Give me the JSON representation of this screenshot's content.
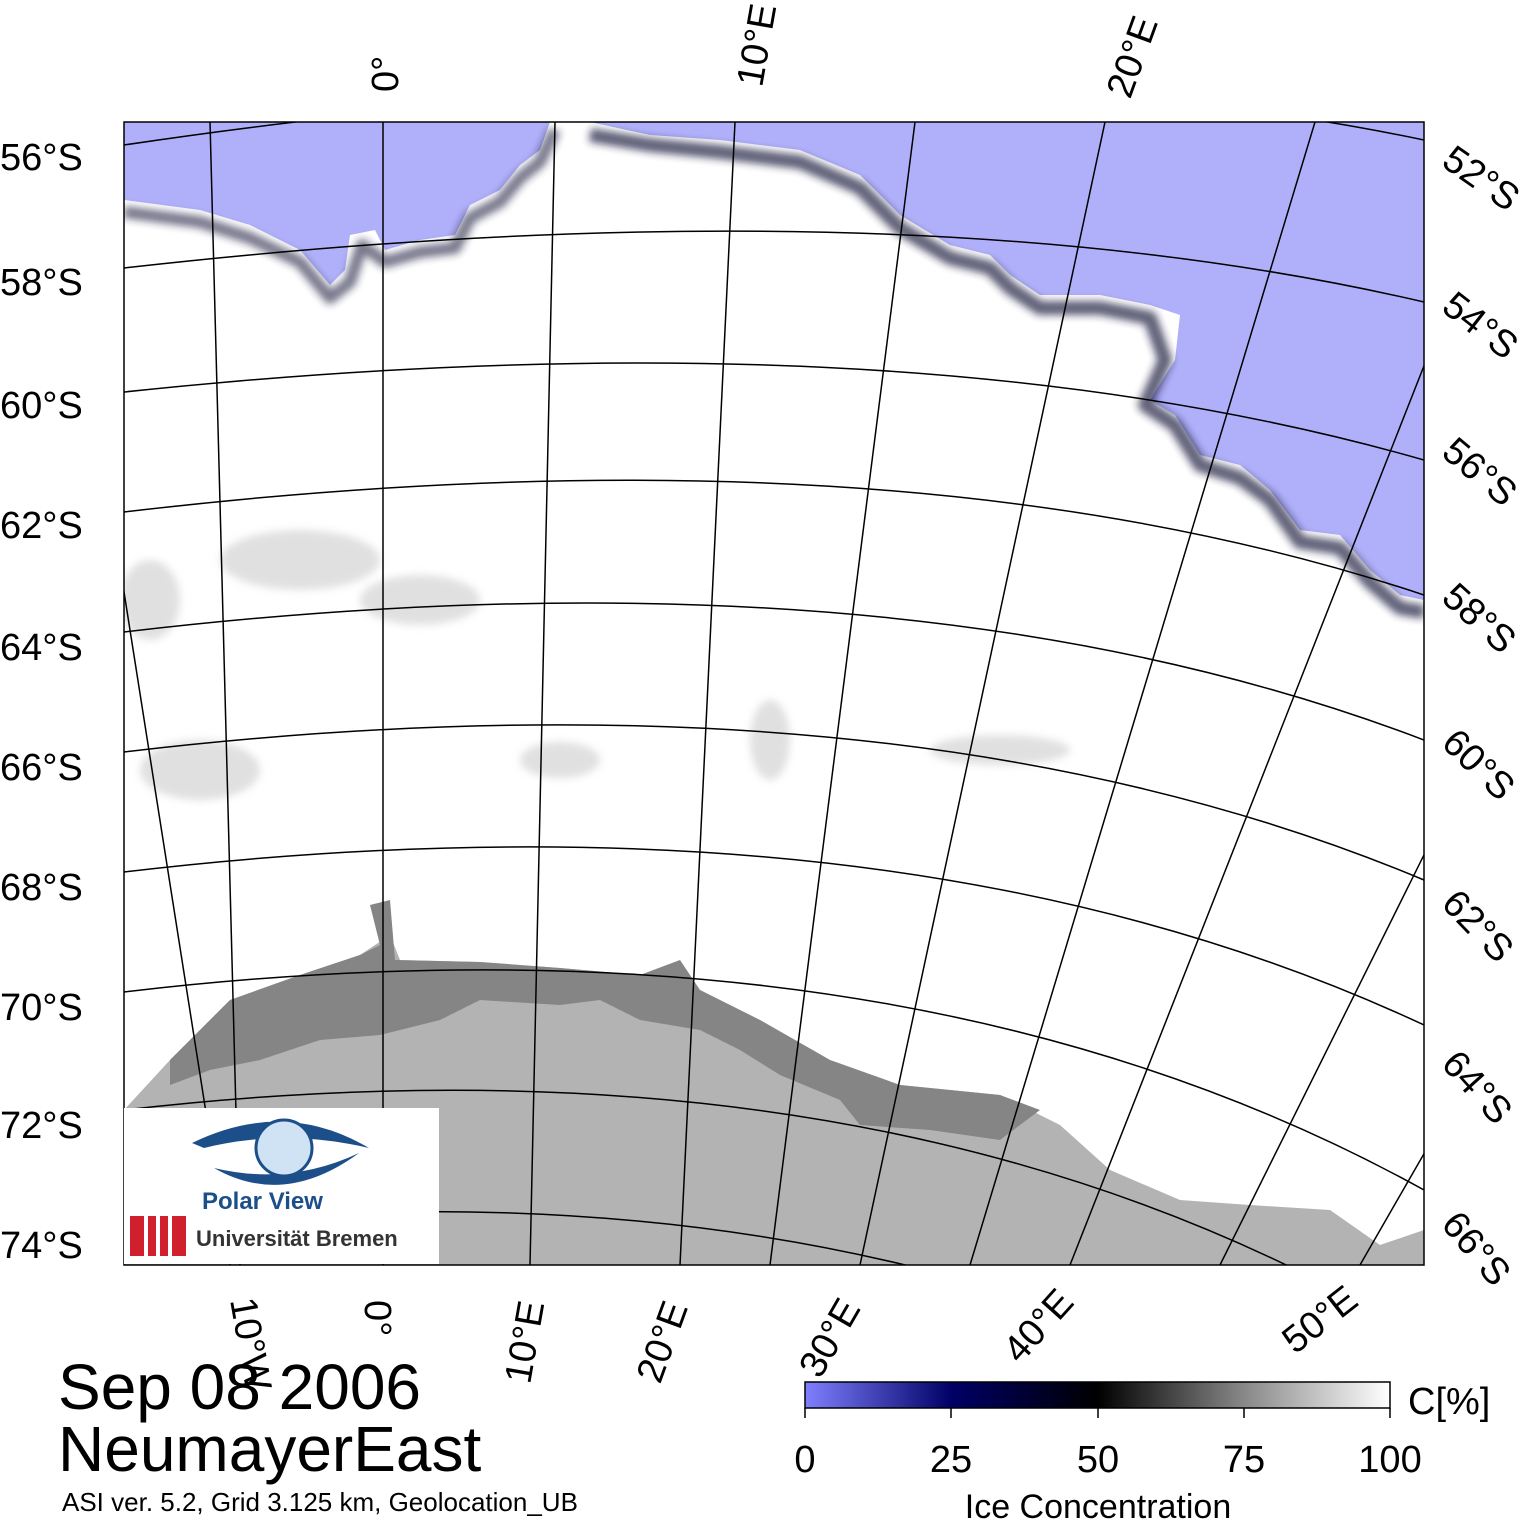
{
  "map": {
    "meridians": [
      {
        "lon": "0°",
        "label_top": "0°",
        "label_bottom": "0°"
      },
      {
        "lon": "10°E",
        "label_top": "10°E",
        "label_bottom": "10°E"
      },
      {
        "lon": "20°E",
        "label_top": "20°E",
        "label_bottom": "20°E"
      },
      {
        "lon": "30°E",
        "label_bottom": "30°E"
      },
      {
        "lon": "40°E",
        "label_bottom": "40°E"
      },
      {
        "lon": "50°E",
        "label_bottom": "50°E"
      },
      {
        "lon": "10°W",
        "label_bottom": "10°W"
      }
    ],
    "left_lat_labels": [
      "56°S",
      "58°S",
      "60°S",
      "62°S",
      "64°S",
      "66°S",
      "68°S",
      "70°S",
      "72°S",
      "74°S"
    ],
    "right_lat_labels": [
      "52°S",
      "54°S",
      "56°S",
      "58°S",
      "60°S",
      "62°S",
      "64°S",
      "66°S"
    ],
    "colors": {
      "open_water": "#b0b0fa",
      "land": "#b3b3b3",
      "ice_shelf": "#858585",
      "ice_full": "#ffffff",
      "grid_line": "#000000"
    }
  },
  "title": {
    "date": "Sep 08 2006",
    "region": "NeumayerEast",
    "subtitle": "ASI ver. 5.2,  Grid 3.125 km, Geolocation_UB"
  },
  "logo": {
    "brand": "Polar View",
    "institution": "Universität Bremen"
  },
  "colorbar": {
    "label": "Ice Concentration",
    "unit": "C[%]",
    "ticks": [
      "0",
      "25",
      "50",
      "75",
      "100"
    ],
    "range": [
      0,
      100
    ],
    "gradient": [
      "#8080ff",
      "#000066",
      "#000000",
      "#888888",
      "#ffffff"
    ]
  }
}
